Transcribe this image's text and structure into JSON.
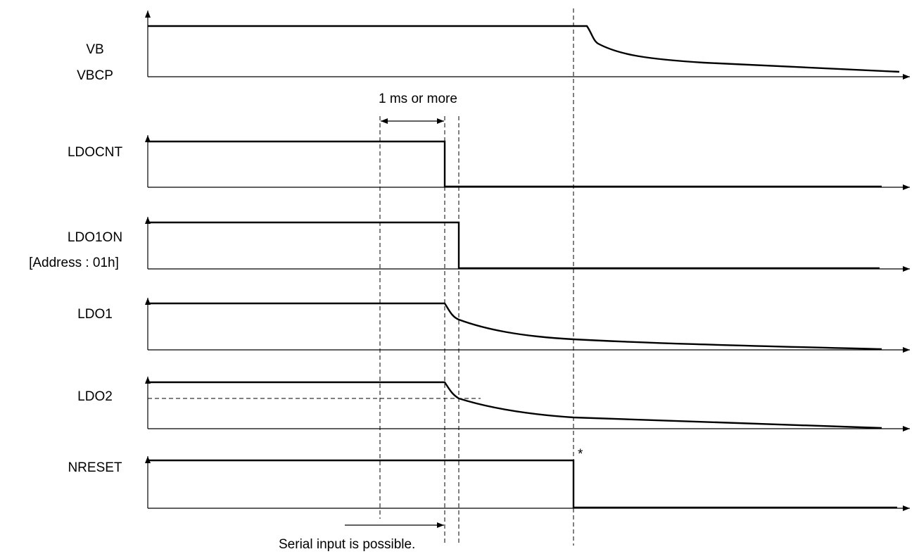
{
  "signals": [
    {
      "id": "vb",
      "labels": [
        "VB",
        "VBCP"
      ]
    },
    {
      "id": "ldocnt",
      "labels": [
        "LDOCNT"
      ]
    },
    {
      "id": "ldo1on",
      "labels": [
        "LDO1ON",
        "[Address : 01h]"
      ]
    },
    {
      "id": "ldo1",
      "labels": [
        "LDO1"
      ]
    },
    {
      "id": "ldo2",
      "labels": [
        "LDO2"
      ]
    },
    {
      "id": "nreset",
      "labels": [
        "NRESET"
      ]
    }
  ],
  "annotations": {
    "interval": "1 ms or  more",
    "serial": "Serial input is possible.",
    "asterisk": "*"
  }
}
